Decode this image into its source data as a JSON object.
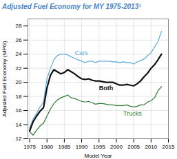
{
  "chart_data": {
    "type": "line",
    "title": "Adjusted Fuel Economy for MY 1975-2013¹",
    "title_color": "#4a86c8",
    "x_label": "Model Year",
    "y_label": "Adjusted Fuel Economy (MPG)",
    "xlim": [
      1974.5,
      2015
    ],
    "ylim": [
      12,
      29
    ],
    "xticks": [
      1975,
      1980,
      1985,
      1990,
      1995,
      2000,
      2005,
      2010,
      2015
    ],
    "yticks": [
      12,
      14,
      16,
      18,
      20,
      22,
      24,
      26,
      28
    ],
    "grid": true,
    "x": [
      1975,
      1976,
      1977,
      1978,
      1979,
      1980,
      1981,
      1982,
      1983,
      1984,
      1985,
      1986,
      1987,
      1988,
      1989,
      1990,
      1991,
      1992,
      1993,
      1994,
      1995,
      1996,
      1997,
      1998,
      1999,
      2000,
      2001,
      2002,
      2003,
      2004,
      2005,
      2006,
      2007,
      2008,
      2009,
      2010,
      2011,
      2012,
      2013
    ],
    "series": [
      {
        "name": "Trucks",
        "color": "#2e7d32",
        "values": [
          13.0,
          12.5,
          13.2,
          13.8,
          14.2,
          15.2,
          16.2,
          17.0,
          17.5,
          17.8,
          18.0,
          18.2,
          17.8,
          17.7,
          17.5,
          17.3,
          17.2,
          17.3,
          17.1,
          16.9,
          17.0,
          17.0,
          16.9,
          16.8,
          16.8,
          16.7,
          16.7,
          16.7,
          16.8,
          16.6,
          16.5,
          16.6,
          16.8,
          16.8,
          17.2,
          17.4,
          17.8,
          18.8,
          19.4
        ]
      },
      {
        "name": "Cars",
        "color": "#5aaadc",
        "values": [
          13.5,
          14.8,
          15.6,
          16.5,
          17.2,
          20.5,
          22.0,
          23.2,
          23.8,
          24.0,
          24.0,
          23.9,
          23.6,
          23.4,
          23.2,
          23.0,
          22.8,
          23.0,
          23.0,
          22.8,
          23.0,
          23.0,
          23.0,
          23.0,
          22.9,
          22.9,
          22.8,
          22.9,
          22.8,
          22.8,
          22.6,
          22.9,
          23.1,
          23.3,
          23.8,
          24.2,
          25.0,
          25.8,
          27.2
        ]
      },
      {
        "name": "Both",
        "color": "#111111",
        "values": [
          13.1,
          14.4,
          15.2,
          15.9,
          16.4,
          19.2,
          21.0,
          21.8,
          21.5,
          21.2,
          21.4,
          21.8,
          21.5,
          21.2,
          20.8,
          20.5,
          20.4,
          20.5,
          20.3,
          20.2,
          20.2,
          20.1,
          20.0,
          20.0,
          20.0,
          19.8,
          19.6,
          19.6,
          19.7,
          19.6,
          19.5,
          19.8,
          20.2,
          20.8,
          21.3,
          22.0,
          22.5,
          23.2,
          24.0
        ]
      }
    ],
    "annotations": [
      {
        "text": "Cars",
        "x": 1988,
        "y": 23.9,
        "color": "#5aaadc"
      },
      {
        "text": "Both",
        "x": 1995,
        "y": 19.5,
        "color": "#111111"
      },
      {
        "text": "Trucks",
        "x": 2002,
        "y": 15.9,
        "color": "#2e7d32"
      }
    ]
  }
}
